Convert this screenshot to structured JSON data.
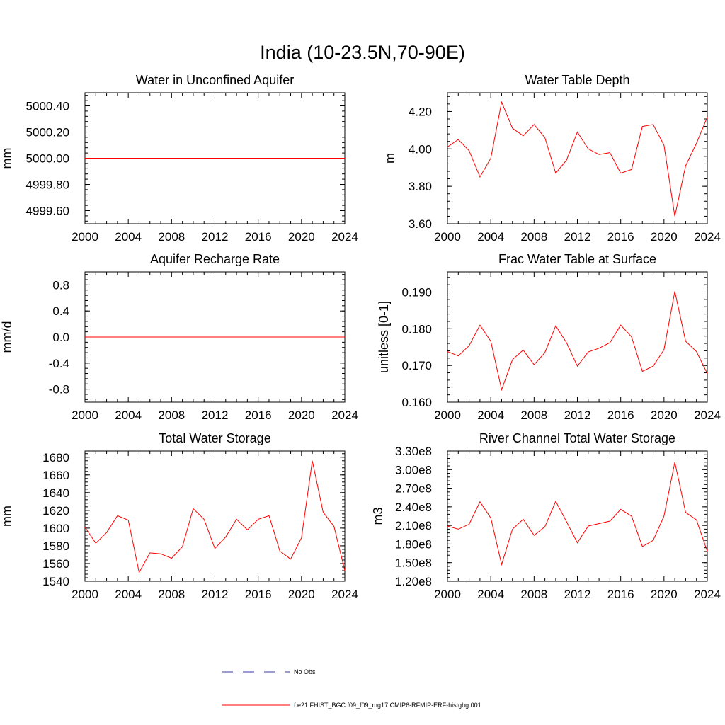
{
  "page": {
    "title": "India (10-23.5N,70-90E)"
  },
  "colors": {
    "model_line": "#ff0000",
    "obs_line": "#3a3aaa",
    "axes": "#000000"
  },
  "chart_data": [
    {
      "type": "line",
      "title": "Water in Unconfined Aquifer",
      "ylabel": "mm",
      "xlim": [
        2000,
        2024
      ],
      "ylim": [
        4999.5,
        5000.5
      ],
      "x_ticks": [
        "2000",
        "2004",
        "2008",
        "2012",
        "2016",
        "2020",
        "2024"
      ],
      "y_ticks": [
        {
          "value": 4999.6,
          "label": "4999.60"
        },
        {
          "value": 4999.8,
          "label": "4999.80"
        },
        {
          "value": 5000.0,
          "label": "5000.00"
        },
        {
          "value": 5000.2,
          "label": "5000.20"
        },
        {
          "value": 5000.4,
          "label": "5000.40"
        }
      ],
      "y_minor_step": 0.04,
      "x": [
        2000,
        2001,
        2002,
        2003,
        2004,
        2005,
        2006,
        2007,
        2008,
        2009,
        2010,
        2011,
        2012,
        2013,
        2014,
        2015,
        2016,
        2017,
        2018,
        2019,
        2020,
        2021,
        2022,
        2023,
        2024
      ],
      "values": [
        5000,
        5000,
        5000,
        5000,
        5000,
        5000,
        5000,
        5000,
        5000,
        5000,
        5000,
        5000,
        5000,
        5000,
        5000,
        5000,
        5000,
        5000,
        5000,
        5000,
        5000,
        5000,
        5000,
        5000,
        5000
      ]
    },
    {
      "type": "line",
      "title": "Water Table Depth",
      "ylabel": "m",
      "xlim": [
        2000,
        2024
      ],
      "ylim": [
        3.6,
        4.3
      ],
      "x_ticks": [
        "2000",
        "2004",
        "2008",
        "2012",
        "2016",
        "2020",
        "2024"
      ],
      "y_ticks": [
        {
          "value": 3.6,
          "label": "3.60"
        },
        {
          "value": 3.8,
          "label": "3.80"
        },
        {
          "value": 4.0,
          "label": "4.00"
        },
        {
          "value": 4.2,
          "label": "4.20"
        }
      ],
      "y_minor_step": 0.04,
      "x": [
        2000,
        2001,
        2002,
        2003,
        2004,
        2005,
        2006,
        2007,
        2008,
        2009,
        2010,
        2011,
        2012,
        2013,
        2014,
        2015,
        2016,
        2017,
        2018,
        2019,
        2020,
        2021,
        2022,
        2023,
        2024
      ],
      "values": [
        4.01,
        4.05,
        3.99,
        3.85,
        3.95,
        4.25,
        4.11,
        4.07,
        4.13,
        4.06,
        3.87,
        3.94,
        4.09,
        4.0,
        3.97,
        3.98,
        3.87,
        3.89,
        4.12,
        4.13,
        4.02,
        3.64,
        3.91,
        4.03,
        4.17
      ]
    },
    {
      "type": "line",
      "title": "Aquifer Recharge Rate",
      "ylabel": "mm/d",
      "xlim": [
        2000,
        2024
      ],
      "ylim": [
        -1.0,
        1.0
      ],
      "x_ticks": [
        "2000",
        "2004",
        "2008",
        "2012",
        "2016",
        "2020",
        "2024"
      ],
      "y_ticks": [
        {
          "value": -0.8,
          "label": "-0.8"
        },
        {
          "value": -0.4,
          "label": "-0.4"
        },
        {
          "value": 0.0,
          "label": "0.0"
        },
        {
          "value": 0.4,
          "label": "0.4"
        },
        {
          "value": 0.8,
          "label": "0.8"
        }
      ],
      "y_minor_step": 0.08,
      "x": [
        2000,
        2001,
        2002,
        2003,
        2004,
        2005,
        2006,
        2007,
        2008,
        2009,
        2010,
        2011,
        2012,
        2013,
        2014,
        2015,
        2016,
        2017,
        2018,
        2019,
        2020,
        2021,
        2022,
        2023,
        2024
      ],
      "values": [
        0,
        0,
        0,
        0,
        0,
        0,
        0,
        0,
        0,
        0,
        0,
        0,
        0,
        0,
        0,
        0,
        0,
        0,
        0,
        0,
        0,
        0,
        0,
        0,
        0
      ]
    },
    {
      "type": "line",
      "title": "Frac Water Table at Surface",
      "ylabel": "unitless [0-1]",
      "xlim": [
        2000,
        2024
      ],
      "ylim": [
        0.16,
        0.1955
      ],
      "x_ticks": [
        "2000",
        "2004",
        "2008",
        "2012",
        "2016",
        "2020",
        "2024"
      ],
      "y_ticks": [
        {
          "value": 0.16,
          "label": "0.160"
        },
        {
          "value": 0.17,
          "label": "0.170"
        },
        {
          "value": 0.18,
          "label": "0.180"
        },
        {
          "value": 0.19,
          "label": "0.190"
        }
      ],
      "y_minor_step": 0.002,
      "x": [
        2000,
        2001,
        2002,
        2003,
        2004,
        2005,
        2006,
        2007,
        2008,
        2009,
        2010,
        2011,
        2012,
        2013,
        2014,
        2015,
        2016,
        2017,
        2018,
        2019,
        2020,
        2021,
        2022,
        2023,
        2024
      ],
      "values": [
        0.1738,
        0.1726,
        0.1754,
        0.181,
        0.1766,
        0.1634,
        0.1716,
        0.1742,
        0.1702,
        0.1735,
        0.1808,
        0.1762,
        0.1698,
        0.1737,
        0.1747,
        0.1762,
        0.181,
        0.1778,
        0.1684,
        0.1698,
        0.1743,
        0.1902,
        0.1766,
        0.1738,
        0.1678
      ]
    },
    {
      "type": "line",
      "title": "Total Water Storage",
      "ylabel": "mm",
      "xlim": [
        2000,
        2024
      ],
      "ylim": [
        1540,
        1687
      ],
      "x_ticks": [
        "2000",
        "2004",
        "2008",
        "2012",
        "2016",
        "2020",
        "2024"
      ],
      "y_ticks": [
        {
          "value": 1540,
          "label": "1540"
        },
        {
          "value": 1560,
          "label": "1560"
        },
        {
          "value": 1580,
          "label": "1580"
        },
        {
          "value": 1600,
          "label": "1600"
        },
        {
          "value": 1620,
          "label": "1620"
        },
        {
          "value": 1640,
          "label": "1640"
        },
        {
          "value": 1660,
          "label": "1660"
        },
        {
          "value": 1680,
          "label": "1680"
        }
      ],
      "y_minor_step": 4,
      "x": [
        2000,
        2001,
        2002,
        2003,
        2004,
        2005,
        2006,
        2007,
        2008,
        2009,
        2010,
        2011,
        2012,
        2013,
        2014,
        2015,
        2016,
        2017,
        2018,
        2019,
        2020,
        2021,
        2022,
        2023,
        2024
      ],
      "values": [
        1601,
        1583,
        1595,
        1614,
        1609,
        1550,
        1572,
        1571,
        1566,
        1579,
        1622,
        1610,
        1577,
        1590,
        1610,
        1598,
        1610,
        1614,
        1574,
        1565,
        1589,
        1676,
        1618,
        1602,
        1552
      ]
    },
    {
      "type": "line",
      "title": "River Channel Total Water Storage",
      "ylabel": "m3",
      "xlim": [
        2000,
        2024
      ],
      "ylim": [
        120000000.0,
        330000000.0
      ],
      "x_ticks": [
        "2000",
        "2004",
        "2008",
        "2012",
        "2016",
        "2020",
        "2024"
      ],
      "y_ticks": [
        {
          "value": 120000000.0,
          "label": "1.20e8"
        },
        {
          "value": 150000000.0,
          "label": "1.50e8"
        },
        {
          "value": 180000000.0,
          "label": "1.80e8"
        },
        {
          "value": 210000000.0,
          "label": "2.10e8"
        },
        {
          "value": 240000000.0,
          "label": "2.40e8"
        },
        {
          "value": 270000000.0,
          "label": "2.70e8"
        },
        {
          "value": 300000000.0,
          "label": "3.00e8"
        },
        {
          "value": 330000000.0,
          "label": "3.30e8"
        }
      ],
      "y_minor_step": 6000000.0,
      "x": [
        2000,
        2001,
        2002,
        2003,
        2004,
        2005,
        2006,
        2007,
        2008,
        2009,
        2010,
        2011,
        2012,
        2013,
        2014,
        2015,
        2016,
        2017,
        2018,
        2019,
        2020,
        2021,
        2022,
        2023,
        2024
      ],
      "values": [
        209000000.0,
        204000000.0,
        212000000.0,
        248000000.0,
        222000000.0,
        147000000.0,
        204000000.0,
        220000000.0,
        194000000.0,
        208000000.0,
        249000000.0,
        216000000.0,
        182000000.0,
        209000000.0,
        213000000.0,
        217000000.0,
        236000000.0,
        225000000.0,
        176000000.0,
        186000000.0,
        225000000.0,
        312000000.0,
        231000000.0,
        219000000.0,
        168000000.0
      ]
    }
  ],
  "legend": {
    "items": [
      {
        "label": "No Obs",
        "style": "dashed"
      },
      {
        "label": "f.e21.FHIST_BGC.f09_f09_mg17.CMIP6-RFMIP-ERF-histghg.001",
        "style": "solid"
      }
    ]
  }
}
